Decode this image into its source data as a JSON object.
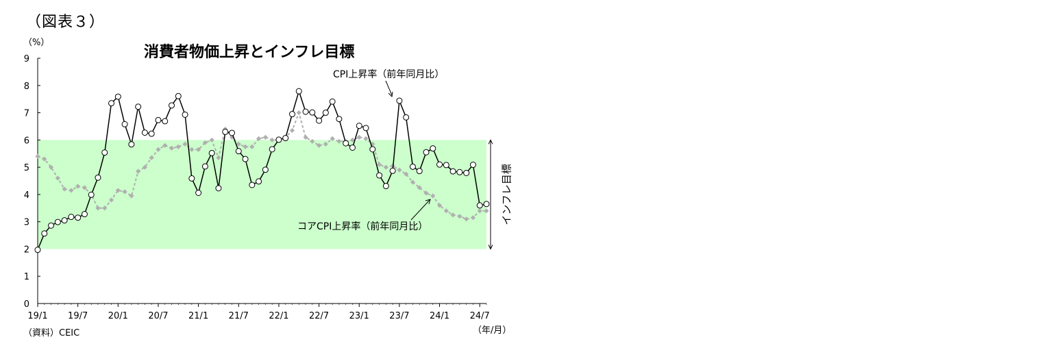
{
  "figure_label": "（図表３）",
  "source_note": "（資料）CEIC",
  "chart_data": {
    "type": "line",
    "title": "消費者物価上昇とインフレ目標",
    "y_unit_label": "（%）",
    "x_unit_label": "（年/月）",
    "ylim": [
      0,
      9
    ],
    "yticks": [
      0,
      1,
      2,
      3,
      4,
      5,
      6,
      7,
      8,
      9
    ],
    "xtick_labels": [
      "19/1",
      "19/7",
      "20/1",
      "20/7",
      "21/1",
      "21/7",
      "22/1",
      "22/7",
      "23/1",
      "23/7",
      "24/1",
      "24/7"
    ],
    "x_start": "2019-01",
    "x_end": "2024-08",
    "grid": false,
    "target_band": {
      "low": 2,
      "high": 6,
      "label": "インフレ目標",
      "color": "#ccffcc"
    },
    "series": [
      {
        "name": "CPI上昇率（前年同月比）",
        "style": "solid-black-with-open-circles",
        "color": "#000000",
        "values": [
          1.97,
          2.57,
          2.86,
          2.99,
          3.05,
          3.18,
          3.15,
          3.28,
          3.99,
          4.62,
          5.54,
          7.35,
          7.59,
          6.58,
          5.84,
          7.22,
          6.27,
          6.23,
          6.73,
          6.69,
          7.27,
          7.61,
          6.93,
          4.59,
          4.06,
          5.03,
          5.52,
          4.23,
          6.3,
          6.26,
          5.59,
          5.3,
          4.35,
          4.48,
          4.91,
          5.66,
          6.01,
          6.07,
          6.95,
          7.79,
          7.04,
          7.01,
          6.71,
          7.0,
          7.41,
          6.77,
          5.88,
          5.72,
          6.52,
          6.44,
          5.66,
          4.7,
          4.31,
          4.87,
          7.44,
          6.83,
          5.02,
          4.86,
          5.55,
          5.69,
          5.1,
          5.08,
          4.85,
          4.82,
          4.79,
          5.09,
          3.6,
          3.65
        ]
      },
      {
        "name": "コアCPI上昇率（前年同月比）",
        "style": "dashed-gray-with-diamonds",
        "color": "#b0b0b0",
        "values": [
          5.4,
          5.3,
          5.0,
          4.6,
          4.2,
          4.15,
          4.3,
          4.25,
          4.0,
          3.5,
          3.5,
          3.8,
          4.15,
          4.1,
          3.95,
          4.85,
          5.0,
          5.35,
          5.65,
          5.8,
          5.7,
          5.75,
          5.85,
          5.65,
          5.65,
          5.9,
          6.0,
          5.35,
          6.4,
          6.1,
          5.85,
          5.75,
          5.75,
          6.05,
          6.1,
          6.0,
          6.0,
          6.1,
          6.35,
          7.0,
          6.1,
          5.95,
          5.8,
          5.85,
          6.05,
          5.95,
          5.95,
          6.0,
          6.1,
          6.05,
          5.85,
          5.1,
          5.0,
          5.05,
          4.9,
          4.75,
          4.45,
          4.25,
          4.05,
          3.95,
          3.6,
          3.4,
          3.25,
          3.2,
          3.1,
          3.15,
          3.4,
          3.4
        ]
      }
    ],
    "annotations": [
      {
        "text": "CPI上昇率（前年同月比）",
        "for": "CPI上昇率（前年同月比）"
      },
      {
        "text": "コアCPI上昇率（前年同月比）",
        "for": "コアCPI上昇率（前年同月比）"
      }
    ]
  }
}
